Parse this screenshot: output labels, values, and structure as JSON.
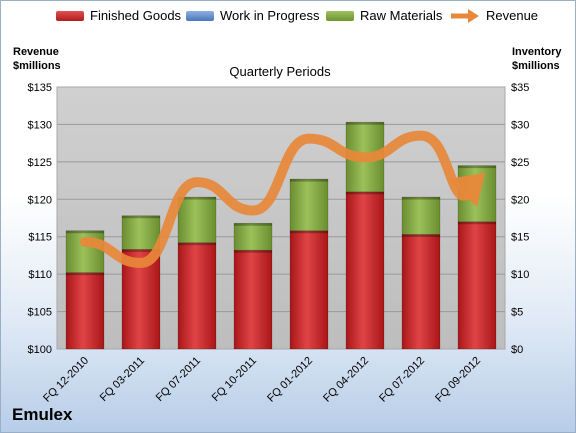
{
  "chart_data": {
    "type": "bar",
    "stacked": true,
    "subtitle": "Quarterly Periods",
    "categories": [
      "FQ 12-2010",
      "FQ 03-2011",
      "FQ 07-2011",
      "FQ 10-2011",
      "FQ 01-2012",
      "FQ 04-2012",
      "FQ 07-2012",
      "FQ 09-2012"
    ],
    "y_left": {
      "label_line1": "Revenue",
      "label_line2": "$millions",
      "range": [
        100,
        135
      ],
      "ticks": [
        "$100",
        "$105",
        "$110",
        "$115",
        "$120",
        "$125",
        "$130",
        "$135"
      ]
    },
    "y_right": {
      "label_line1": "Inventory",
      "label_line2": "$millions",
      "range": [
        0,
        35
      ],
      "ticks": [
        "$0",
        "$5",
        "$10",
        "$15",
        "$20",
        "$25",
        "$30",
        "$35"
      ]
    },
    "series": [
      {
        "name": "Finished Goods",
        "axis": "right",
        "color": "#c0282a",
        "values": [
          10.2,
          13.3,
          14.2,
          13.2,
          15.8,
          21.0,
          15.3,
          17.0
        ]
      },
      {
        "name": "Work in Progress",
        "axis": "right",
        "color": "#5b87c7",
        "values": [
          0,
          0,
          0,
          0,
          0,
          0,
          0,
          0
        ]
      },
      {
        "name": "Raw Materials",
        "axis": "right",
        "color": "#7fa641",
        "values": [
          5.6,
          4.5,
          6.1,
          3.6,
          6.9,
          9.3,
          5.0,
          7.5
        ]
      },
      {
        "name": "Revenue",
        "axis": "left",
        "color": "#e8883a",
        "type": "line",
        "values": [
          114.3,
          111.5,
          122.3,
          118.5,
          128.1,
          125.6,
          128.5,
          119.5
        ]
      }
    ],
    "grid": true,
    "legend": "top"
  },
  "brand": "Emulex"
}
